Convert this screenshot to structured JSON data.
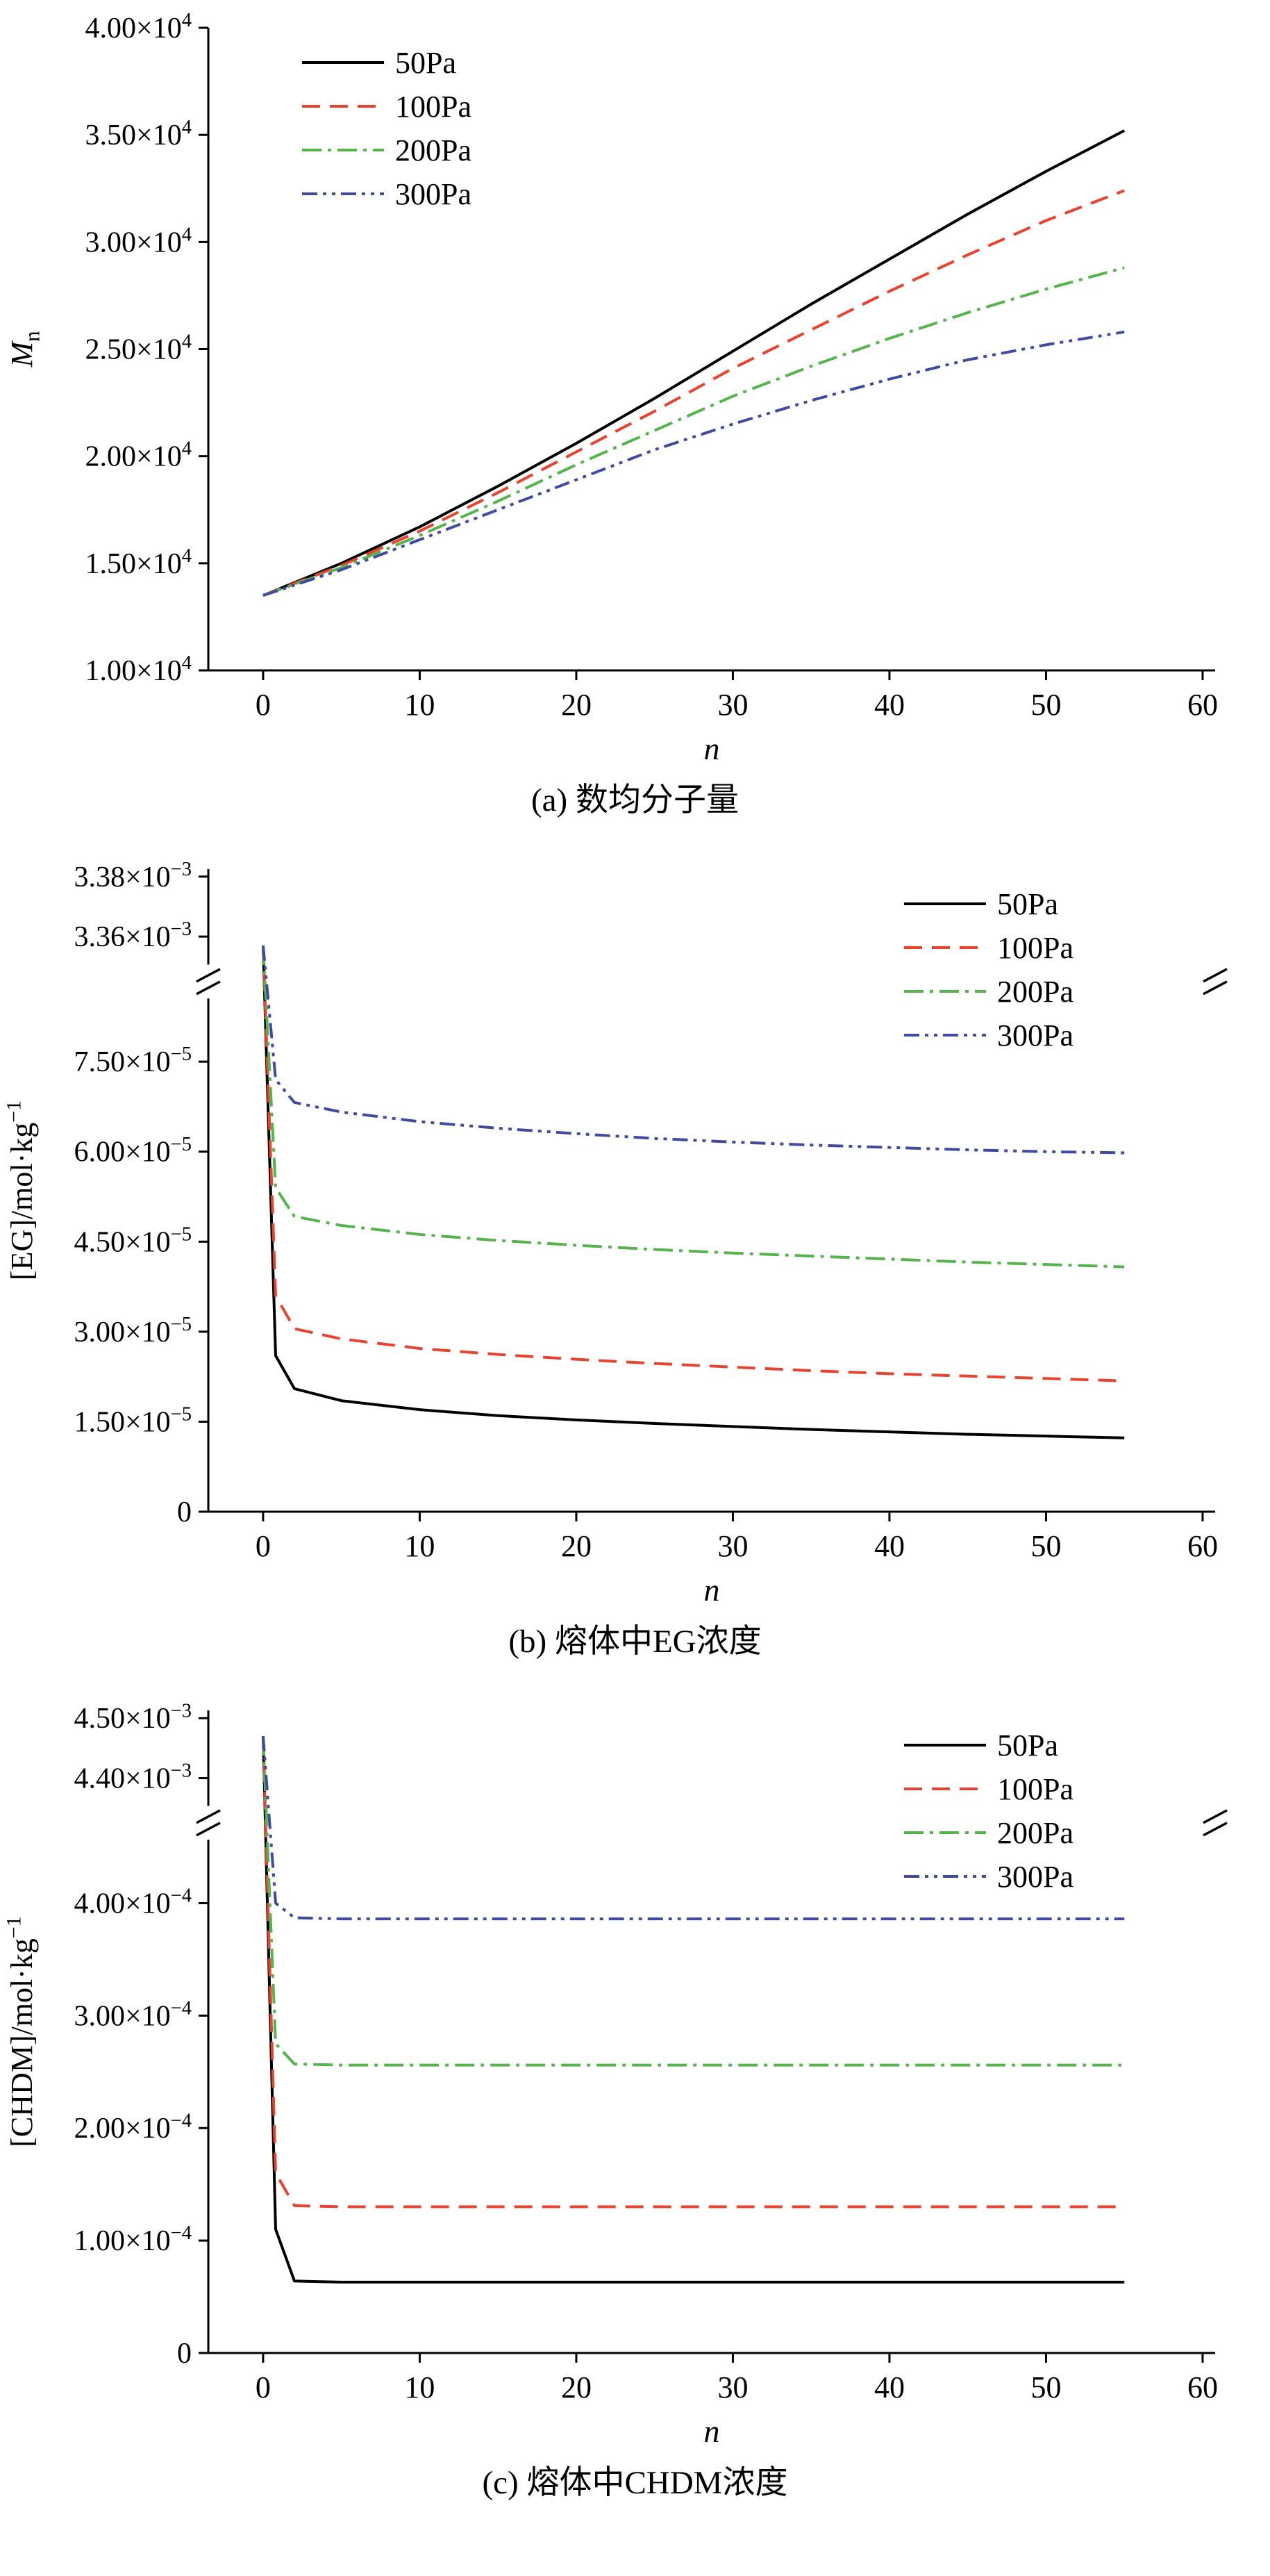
{
  "page": {
    "background": "#ffffff"
  },
  "chart_data": [
    {
      "id": "a",
      "type": "line",
      "caption": "(a) 数均分子量",
      "xlabel": "n",
      "ylabel": "M_n",
      "ylabel_italic": true,
      "xlim": [
        -3.5,
        60.8
      ],
      "x_ticks": [
        0,
        10,
        20,
        30,
        40,
        50,
        60
      ],
      "y_break": false,
      "y_segments": [
        {
          "from_frac": 0,
          "to_frac": 1,
          "vmin": 10000,
          "vmax": 40000,
          "ticks": [
            {
              "v": 40000,
              "label": "4.00×10^4"
            },
            {
              "v": 35000,
              "label": "3.50×10^4"
            },
            {
              "v": 30000,
              "label": "3.00×10^4"
            },
            {
              "v": 25000,
              "label": "2.50×10^4"
            },
            {
              "v": 20000,
              "label": "2.00×10^4"
            },
            {
              "v": 15000,
              "label": "1.50×10^4"
            },
            {
              "v": 10000,
              "label": "1.00×10^4"
            }
          ]
        }
      ],
      "legend": {
        "position": "top-left",
        "entries": [
          "50Pa",
          "100Pa",
          "200Pa",
          "300Pa"
        ]
      },
      "x": [
        0,
        5,
        10,
        15,
        20,
        25,
        30,
        35,
        40,
        45,
        50,
        55
      ],
      "series": [
        {
          "name": "50Pa",
          "color": "#000000",
          "dash": "solid",
          "values": [
            13500,
            15000,
            16700,
            18600,
            20600,
            22700,
            24900,
            27100,
            29200,
            31300,
            33300,
            35200
          ]
        },
        {
          "name": "100Pa",
          "color": "#e8432e",
          "dash": "dashed",
          "values": [
            13500,
            14900,
            16500,
            18300,
            20200,
            22100,
            24100,
            25900,
            27700,
            29400,
            31000,
            32400
          ]
        },
        {
          "name": "200Pa",
          "color": "#56b44c",
          "dash": "dash-dot",
          "values": [
            13500,
            14800,
            16300,
            17900,
            19600,
            21200,
            22800,
            24200,
            25500,
            26700,
            27800,
            28800
          ]
        },
        {
          "name": "300Pa",
          "color": "#3f4ba3",
          "dash": "dash-dot-dot",
          "values": [
            13500,
            14700,
            16100,
            17500,
            18900,
            20300,
            21500,
            22600,
            23600,
            24500,
            25200,
            25800
          ]
        }
      ]
    },
    {
      "id": "b",
      "type": "line",
      "caption": "(b) 熔体中EG浓度",
      "xlabel": "n",
      "ylabel": "[EG]/mol·kg^−1",
      "ylabel_italic": false,
      "xlim": [
        -3.5,
        60.8
      ],
      "x_ticks": [
        0,
        10,
        20,
        30,
        40,
        50,
        60
      ],
      "y_break": true,
      "y_segments": [
        {
          "from_frac": 0,
          "to_frac": 0.14,
          "vmin": 0.0033525,
          "vmax": 0.0033825,
          "ticks": [
            {
              "v": 0.00338,
              "label": "3.38×10^−3"
            },
            {
              "v": 0.00336,
              "label": "3.36×10^−3"
            }
          ]
        },
        {
          "from_frac": 0.21,
          "to_frac": 1,
          "vmin": 0,
          "vmax": 8.46e-05,
          "ticks": [
            {
              "v": 7.5e-05,
              "label": "7.50×10^−5"
            },
            {
              "v": 6e-05,
              "label": "6.00×10^−5"
            },
            {
              "v": 4.5e-05,
              "label": "4.50×10^−5"
            },
            {
              "v": 3e-05,
              "label": "3.00×10^−5"
            },
            {
              "v": 1.5e-05,
              "label": "1.50×10^−5"
            },
            {
              "v": 0,
              "label": "0"
            }
          ]
        }
      ],
      "legend": {
        "position": "top-right",
        "entries": [
          "50Pa",
          "100Pa",
          "200Pa",
          "300Pa"
        ]
      },
      "x": [
        0,
        0.8,
        2,
        5,
        10,
        15,
        20,
        25,
        30,
        35,
        40,
        45,
        50,
        55
      ],
      "series": [
        {
          "name": "50Pa",
          "color": "#000000",
          "dash": "solid",
          "values": [
            0.003357,
            2.6e-05,
            2.05e-05,
            1.85e-05,
            1.7e-05,
            1.6e-05,
            1.53e-05,
            1.47e-05,
            1.42e-05,
            1.37e-05,
            1.33e-05,
            1.29e-05,
            1.26e-05,
            1.23e-05
          ]
        },
        {
          "name": "100Pa",
          "color": "#e8432e",
          "dash": "dashed",
          "values": [
            0.003357,
            3.6e-05,
            3.05e-05,
            2.88e-05,
            2.72e-05,
            2.62e-05,
            2.54e-05,
            2.47e-05,
            2.41e-05,
            2.35e-05,
            2.3e-05,
            2.26e-05,
            2.22e-05,
            2.18e-05
          ]
        },
        {
          "name": "200Pa",
          "color": "#56b44c",
          "dash": "dash-dot",
          "values": [
            0.003357,
            5.4e-05,
            4.92e-05,
            4.77e-05,
            4.62e-05,
            4.52e-05,
            4.44e-05,
            4.37e-05,
            4.31e-05,
            4.26e-05,
            4.21e-05,
            4.16e-05,
            4.12e-05,
            4.08e-05
          ]
        },
        {
          "name": "300Pa",
          "color": "#3f4ba3",
          "dash": "dash-dot-dot",
          "values": [
            0.003357,
            7.2e-05,
            6.82e-05,
            6.66e-05,
            6.5e-05,
            6.39e-05,
            6.3e-05,
            6.22e-05,
            6.16e-05,
            6.11e-05,
            6.07e-05,
            6.03e-05,
            6e-05,
            5.98e-05
          ]
        }
      ]
    },
    {
      "id": "c",
      "type": "line",
      "caption": "(c) 熔体中CHDM浓度",
      "xlabel": "n",
      "ylabel": "[CHDM]/mol·kg^−1",
      "ylabel_italic": false,
      "xlim": [
        -3.5,
        60.8
      ],
      "x_ticks": [
        0,
        10,
        20,
        30,
        40,
        50,
        60
      ],
      "y_break": true,
      "y_segments": [
        {
          "from_frac": 0,
          "to_frac": 0.14,
          "vmin": 0.004363,
          "vmax": 0.004513,
          "ticks": [
            {
              "v": 0.0045,
              "label": "4.50×10^−3"
            },
            {
              "v": 0.0044,
              "label": "4.40×10^−3"
            }
          ]
        },
        {
          "from_frac": 0.21,
          "to_frac": 1,
          "vmin": 0,
          "vmax": 0.0004514,
          "ticks": [
            {
              "v": 0.0004,
              "label": "4.00×10^−4"
            },
            {
              "v": 0.0003,
              "label": "3.00×10^−4"
            },
            {
              "v": 0.0002,
              "label": "2.00×10^−4"
            },
            {
              "v": 0.0001,
              "label": "1.00×10^−4"
            },
            {
              "v": 0,
              "label": "0"
            }
          ]
        }
      ],
      "legend": {
        "position": "top-right",
        "entries": [
          "50Pa",
          "100Pa",
          "200Pa",
          "300Pa"
        ]
      },
      "x": [
        0,
        0.8,
        2,
        5,
        10,
        15,
        20,
        25,
        30,
        35,
        40,
        45,
        50,
        55
      ],
      "series": [
        {
          "name": "50Pa",
          "color": "#000000",
          "dash": "solid",
          "values": [
            0.00447,
            0.00011,
            6.4e-05,
            6.3e-05,
            6.3e-05,
            6.3e-05,
            6.3e-05,
            6.3e-05,
            6.3e-05,
            6.3e-05,
            6.3e-05,
            6.3e-05,
            6.3e-05,
            6.3e-05
          ]
        },
        {
          "name": "100Pa",
          "color": "#e8432e",
          "dash": "dashed",
          "values": [
            0.00447,
            0.00016,
            0.000131,
            0.00013,
            0.00013,
            0.00013,
            0.00013,
            0.00013,
            0.00013,
            0.00013,
            0.00013,
            0.00013,
            0.00013,
            0.00013
          ]
        },
        {
          "name": "200Pa",
          "color": "#56b44c",
          "dash": "dash-dot",
          "values": [
            0.00447,
            0.000275,
            0.000257,
            0.000256,
            0.000256,
            0.000256,
            0.000256,
            0.000256,
            0.000256,
            0.000256,
            0.000256,
            0.000256,
            0.000256,
            0.000256
          ]
        },
        {
          "name": "300Pa",
          "color": "#3f4ba3",
          "dash": "dash-dot-dot",
          "values": [
            0.00447,
            0.0004,
            0.000387,
            0.000386,
            0.000386,
            0.000386,
            0.000386,
            0.000386,
            0.000386,
            0.000386,
            0.000386,
            0.000386,
            0.000386,
            0.000386
          ]
        }
      ]
    }
  ]
}
